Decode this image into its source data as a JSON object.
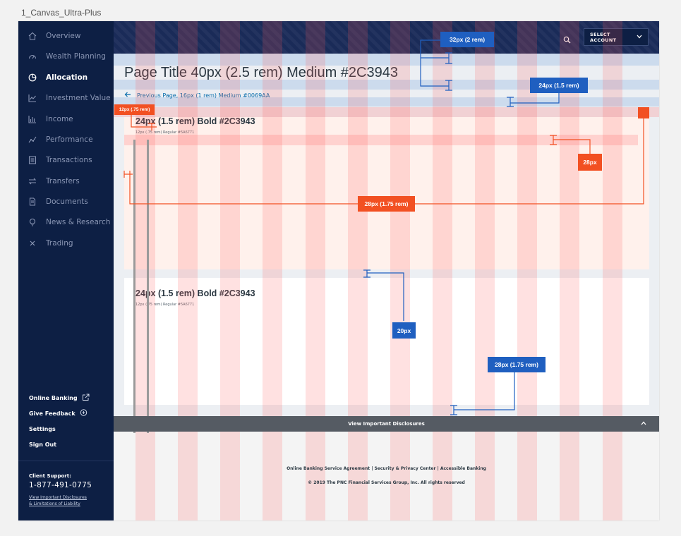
{
  "frame": {
    "label": "1_Canvas_Ultra-Plus"
  },
  "sidebar": {
    "items": [
      {
        "label": "Overview",
        "icon": "home-icon"
      },
      {
        "label": "Wealth Planning",
        "icon": "gauge-icon"
      },
      {
        "label": "Allocation",
        "icon": "pie-chart-icon",
        "active": true
      },
      {
        "label": "Investment Value",
        "icon": "line-chart-icon"
      },
      {
        "label": "Income",
        "icon": "bar-chart-icon"
      },
      {
        "label": "Performance",
        "icon": "trend-icon"
      },
      {
        "label": "Transactions",
        "icon": "list-icon"
      },
      {
        "label": "Transfers",
        "icon": "arrows-icon"
      },
      {
        "label": "Documents",
        "icon": "document-icon"
      },
      {
        "label": "News & Research",
        "icon": "lightbulb-icon"
      },
      {
        "label": "Trading",
        "icon": "close-icon"
      }
    ],
    "utility": {
      "online_banking": "Online Banking",
      "give_feedback": "Give Feedback",
      "settings": "Settings",
      "sign_out": "Sign Out"
    },
    "client_support": {
      "label": "Client Support:",
      "phone": "1-877-491-0775",
      "link1": "View Important Disclosures",
      "link2": "& Limitations of Liability"
    }
  },
  "header": {
    "select_account": "SELECT ACCOUNT"
  },
  "main": {
    "page_title": "Page Title 40px (2.5 rem) Medium #2C3943",
    "back_link": "Previous Page, 16px (1 rem) Medium #0069AA",
    "cards": [
      {
        "title": "24px (1.5 rem) Bold #2C3943",
        "subtitle": "12px (.75 rem) Regular #5A6771"
      },
      {
        "title": "24px (1.5 rem) Bold #2C3943",
        "subtitle": "12px (.75 rem) Regular #5A6771"
      }
    ]
  },
  "footer": {
    "disclosures": "View Important Disclosures",
    "links": "Online Banking Service Agreement  |  Security & Privacy Center  |  Accessible Banking",
    "copyright": "© 2019 The PNC Financial Services Group, Inc. All rights reserved"
  },
  "annotations": {
    "a1": "32px (2 rem)",
    "a2": "24px (1.5 rem)",
    "a3": "12px (.75 rem)",
    "a4": "28px",
    "a5": "28px (1.75 rem)",
    "a6": "20px",
    "a7": "28px (1.75 rem)"
  },
  "colors": {
    "sidebar": "#0d1f44",
    "header": "#1a2b58",
    "title": "#2C3943",
    "link": "#0069AA",
    "annotation_blue": "#1f5fc0",
    "annotation_red": "#f25022"
  }
}
